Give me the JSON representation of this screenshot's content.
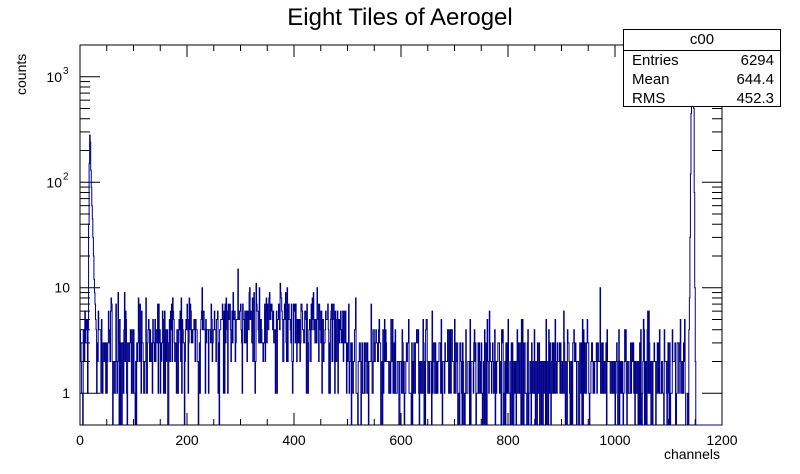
{
  "chart_data": {
    "type": "histogram",
    "title": "Eight Tiles of Aerogel",
    "xlabel": "channels",
    "ylabel": "counts",
    "xlim": [
      0,
      1200
    ],
    "ylim": [
      0.5,
      2000
    ],
    "yscale": "log",
    "x_ticks": [
      "0",
      "200",
      "400",
      "600",
      "800",
      "1000",
      "1200"
    ],
    "y_ticks": [
      {
        "value": 1,
        "label": "1"
      },
      {
        "value": 10,
        "label": "10"
      },
      {
        "value": 100,
        "label": "10",
        "exp": "2"
      },
      {
        "value": 1000,
        "label": "10",
        "exp": "3"
      }
    ],
    "peaks": [
      {
        "x": 20,
        "y": 280
      },
      {
        "x": 1145,
        "y": 1700
      }
    ],
    "stats": {
      "header": "c00",
      "rows": [
        {
          "label": "Entries",
          "value": "6294"
        },
        {
          "label": "Mean",
          "value": "644.4"
        },
        {
          "label": "RMS",
          "value": "452.3"
        }
      ]
    },
    "line_color": "#00008b"
  }
}
